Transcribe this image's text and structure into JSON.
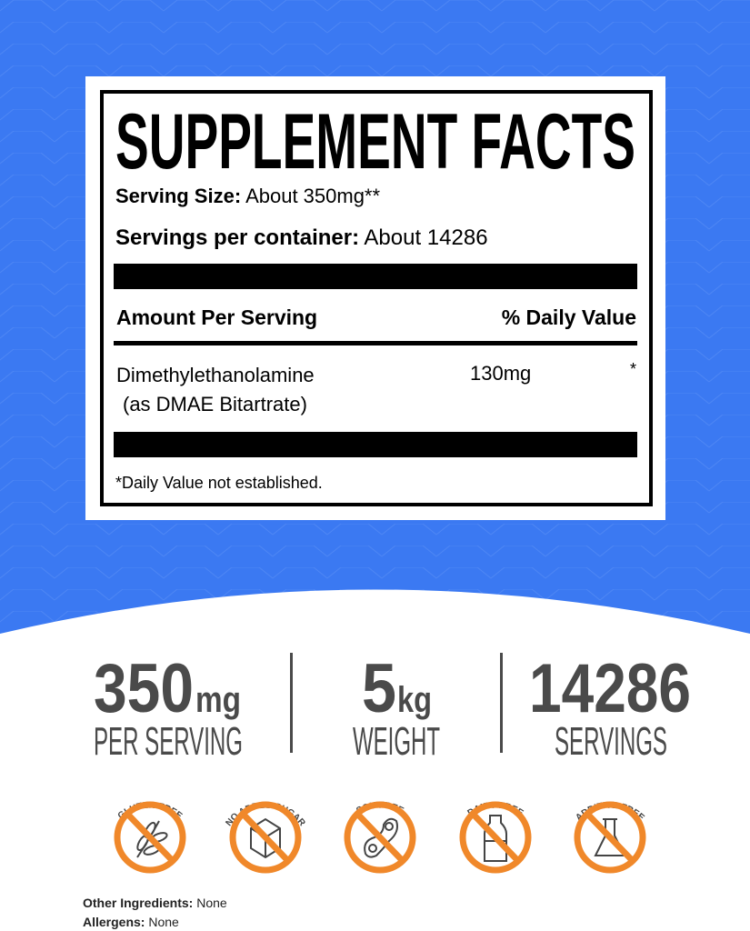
{
  "colors": {
    "background": "#3b79f2",
    "orange": "#f0882a",
    "stat_gray": "#4a4a4a",
    "icon_gray": "#444444"
  },
  "label": {
    "title": "SUPPLEMENT FACTS",
    "serving_size_label": "Serving Size:",
    "serving_size_value": "About 350mg**",
    "servings_label": "Servings per container:",
    "servings_value": "About 14286",
    "amount_header": "Amount Per Serving",
    "dv_header": "% Daily Value",
    "ingredient_line1": "Dimethylethanolamine",
    "ingredient_line2": "(as DMAE Bitartrate)",
    "ingredient_amount": "130mg",
    "ingredient_dv": "*",
    "footnote": "*Daily Value not established."
  },
  "stats": [
    {
      "number": "350",
      "unit": "mg",
      "caption": "PER SERVING"
    },
    {
      "number": "5",
      "unit": "kg",
      "caption": "WEIGHT"
    },
    {
      "number": "14286",
      "unit": "",
      "caption": "SERVINGS"
    }
  ],
  "badges": [
    {
      "label": "GLUTEN FREE",
      "icon": "wheat-icon"
    },
    {
      "label": "NO ADDED SUGAR",
      "icon": "sugar-cube-icon"
    },
    {
      "label": "SOY FREE",
      "icon": "soybean-icon"
    },
    {
      "label": "DAIRY FREE",
      "icon": "milk-bottle-icon"
    },
    {
      "label": "ADDITIVE FREE",
      "icon": "flask-icon"
    }
  ],
  "other": {
    "ingredients_label": "Other Ingredients:",
    "ingredients_value": "None",
    "allergens_label": "Allergens:",
    "allergens_value": "None"
  }
}
